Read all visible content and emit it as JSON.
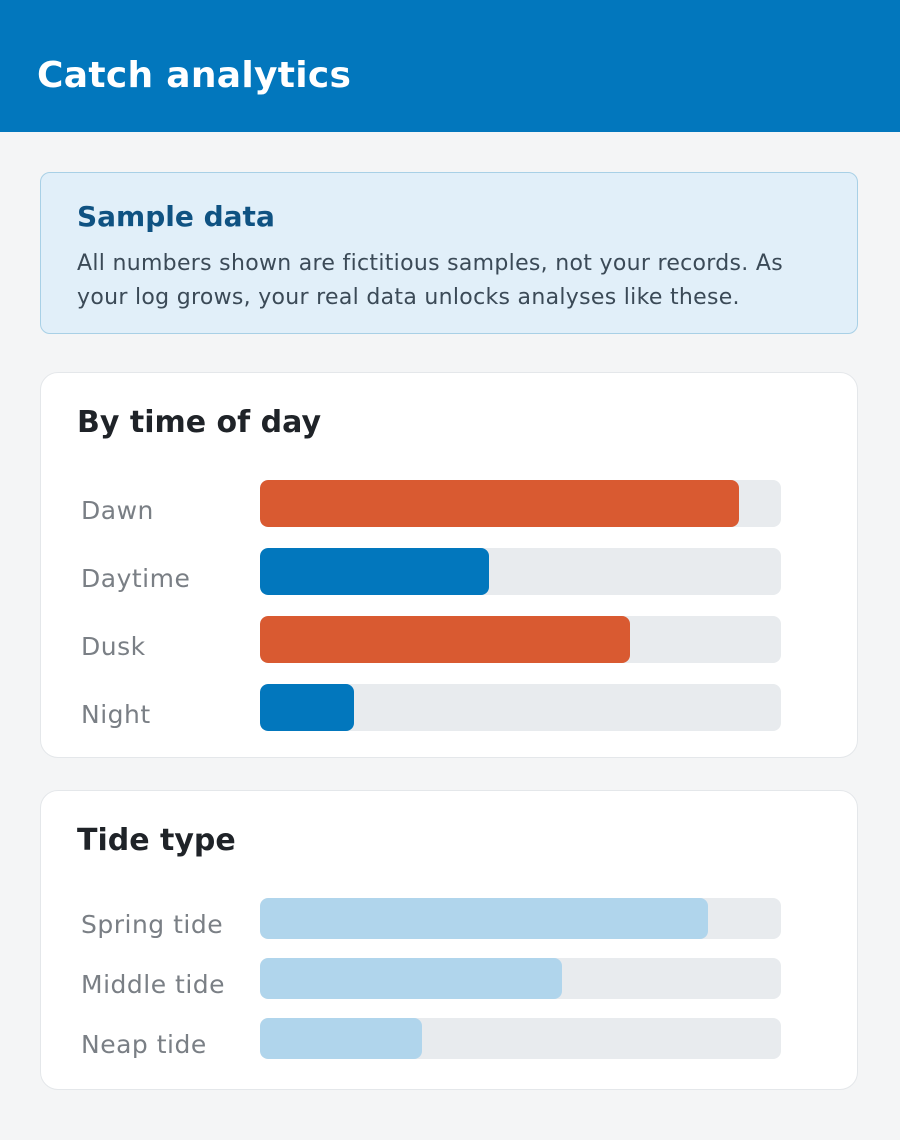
{
  "header": {
    "title": "Catch analytics"
  },
  "notice": {
    "title": "Sample data",
    "body": "All numbers shown are fictitious samples, not your records. As your log grows, your real data unlocks analyses like these."
  },
  "time_of_day": {
    "title": "By time of day",
    "rows": [
      {
        "label": "Dawn",
        "fraction": 0.92,
        "color": "#d95a31"
      },
      {
        "label": "Daytime",
        "fraction": 0.44,
        "color": "#0277bd"
      },
      {
        "label": "Dusk",
        "fraction": 0.71,
        "color": "#d95a31"
      },
      {
        "label": "Night",
        "fraction": 0.18,
        "color": "#0277bd"
      }
    ]
  },
  "tide_type": {
    "title": "Tide type",
    "rows": [
      {
        "label": "Spring tide",
        "fraction": 0.86,
        "color": "#b0d5ec"
      },
      {
        "label": "Middle tide",
        "fraction": 0.58,
        "color": "#b0d5ec"
      },
      {
        "label": "Neap tide",
        "fraction": 0.31,
        "color": "#b0d5ec"
      }
    ]
  }
}
